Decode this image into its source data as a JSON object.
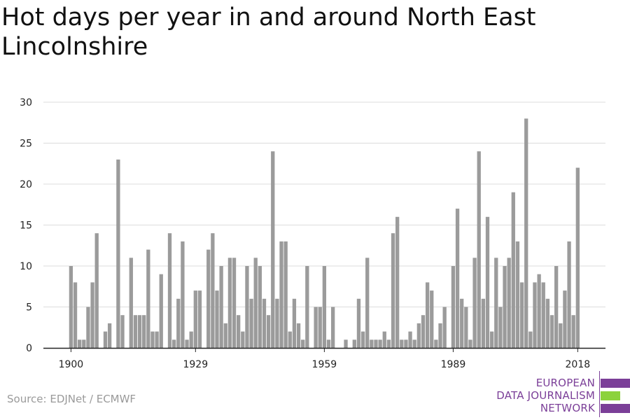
{
  "title": "Hot days per year in and around North East Lincolnshire",
  "source": "Source: EDJNet / ECMWF",
  "logo": {
    "lines": [
      "EUROPEAN",
      "DATA JOURNALISM",
      "NETWORK"
    ],
    "colors": {
      "purple": "#7b3f98",
      "green": "#8cd23c"
    }
  },
  "chart_data": {
    "type": "bar",
    "title": "Hot days per year in and around North East Lincolnshire",
    "xlabel": "",
    "ylabel": "",
    "ylim": [
      0,
      30
    ],
    "yticks": [
      0,
      5,
      10,
      15,
      20,
      25,
      30
    ],
    "xticks": [
      1900,
      1929,
      1959,
      1989,
      2018
    ],
    "grid": true,
    "bar_color": "#9b9b9b",
    "x": [
      1900,
      1901,
      1902,
      1903,
      1904,
      1905,
      1906,
      1907,
      1908,
      1909,
      1910,
      1911,
      1912,
      1913,
      1914,
      1915,
      1916,
      1917,
      1918,
      1919,
      1920,
      1921,
      1922,
      1923,
      1924,
      1925,
      1926,
      1927,
      1928,
      1929,
      1930,
      1931,
      1932,
      1933,
      1934,
      1935,
      1936,
      1937,
      1938,
      1939,
      1940,
      1941,
      1942,
      1943,
      1944,
      1945,
      1946,
      1947,
      1948,
      1949,
      1950,
      1951,
      1952,
      1953,
      1954,
      1955,
      1956,
      1957,
      1958,
      1959,
      1960,
      1961,
      1962,
      1963,
      1964,
      1965,
      1966,
      1967,
      1968,
      1969,
      1970,
      1971,
      1972,
      1973,
      1974,
      1975,
      1976,
      1977,
      1978,
      1979,
      1980,
      1981,
      1982,
      1983,
      1984,
      1985,
      1986,
      1987,
      1988,
      1989,
      1990,
      1991,
      1992,
      1993,
      1994,
      1995,
      1996,
      1997,
      1998,
      1999,
      2000,
      2001,
      2002,
      2003,
      2004,
      2005,
      2006,
      2007,
      2008,
      2009,
      2010,
      2011,
      2012,
      2013,
      2014,
      2015,
      2016,
      2017,
      2018
    ],
    "values": [
      10,
      8,
      1,
      1,
      5,
      8,
      14,
      0,
      2,
      3,
      0,
      23,
      4,
      0,
      11,
      4,
      4,
      4,
      12,
      2,
      2,
      9,
      0,
      14,
      1,
      6,
      13,
      1,
      2,
      7,
      7,
      0,
      12,
      14,
      7,
      10,
      3,
      11,
      11,
      4,
      2,
      10,
      6,
      11,
      10,
      6,
      4,
      24,
      6,
      13,
      13,
      2,
      6,
      3,
      1,
      10,
      0,
      5,
      5,
      10,
      1,
      5,
      0,
      0,
      1,
      0,
      1,
      6,
      2,
      11,
      1,
      1,
      1,
      2,
      1,
      14,
      16,
      1,
      1,
      2,
      1,
      3,
      4,
      8,
      7,
      1,
      3,
      5,
      0,
      10,
      17,
      6,
      5,
      1,
      11,
      24,
      6,
      16,
      2,
      11,
      5,
      10,
      11,
      19,
      13,
      8,
      28,
      2,
      8,
      9,
      8,
      6,
      4,
      10,
      3,
      7,
      13,
      4,
      22
    ]
  }
}
